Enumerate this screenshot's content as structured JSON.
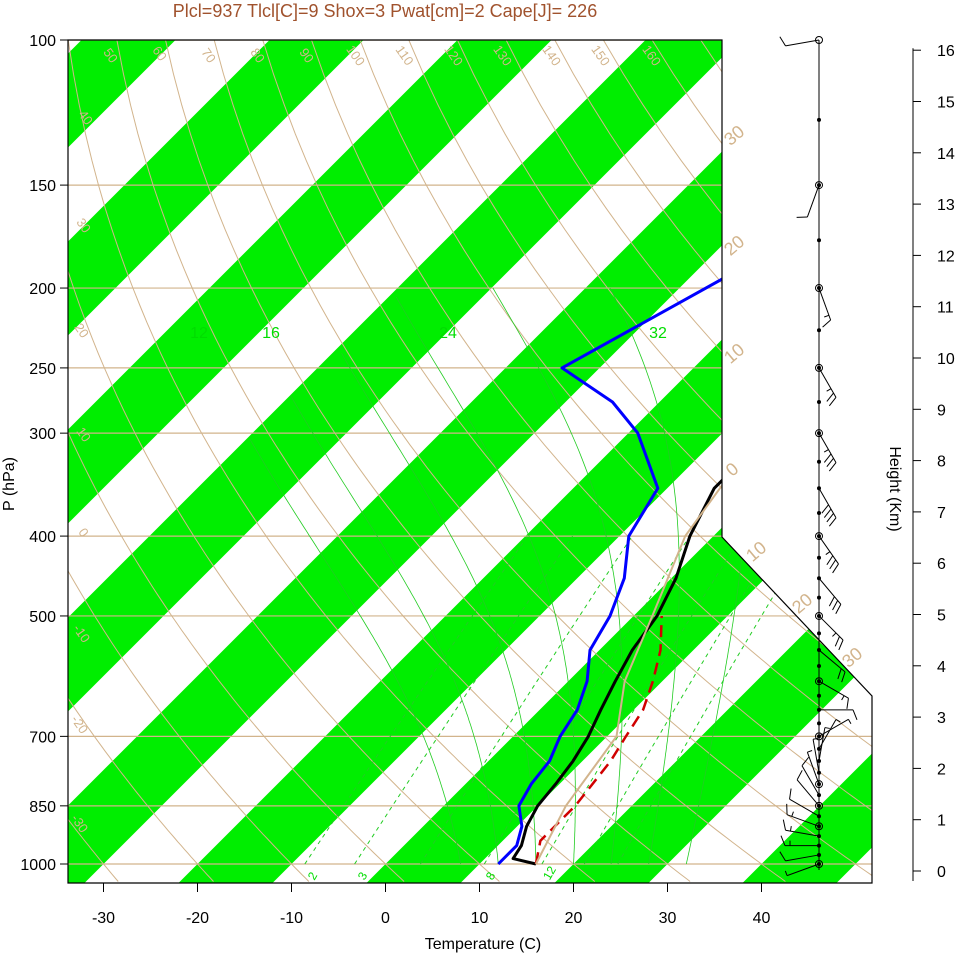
{
  "title": "Plcl=937 Tlcl[C]=9 Shox=3 Pwat[cm]=2 Cape[J]= 226",
  "chart_data": {
    "type": "line",
    "xlabel": "Temperature (C)",
    "ylabel": "P (hPa)",
    "y2label": "Height (Km)",
    "x_ticks": [
      -30,
      -20,
      -10,
      0,
      10,
      20,
      30,
      40
    ],
    "p_ticks": [
      100,
      150,
      200,
      250,
      300,
      400,
      500,
      700,
      850,
      1000
    ],
    "height_ticks": [
      0,
      1,
      2,
      3,
      4,
      5,
      6,
      7,
      8,
      9,
      10,
      11,
      12,
      13,
      14,
      15,
      16
    ],
    "dry_adiabat_labels": [
      "50",
      "60",
      "70",
      "80",
      "90",
      "100",
      "110",
      "120",
      "130",
      "140",
      "150",
      "160",
      "40",
      "30",
      "20",
      "10",
      "0",
      "-10",
      "-20",
      "-30"
    ],
    "moist_adiabat_labels": [
      "30",
      "20",
      "10",
      "0",
      "10",
      "20",
      "30"
    ],
    "mixing_ratio_labels_top": [
      "12",
      "16",
      "24",
      "32"
    ],
    "mixing_ratio_labels_bottom": [
      "2",
      "3",
      "8",
      "12"
    ],
    "series": [
      {
        "kind": "temperature",
        "color": "#000000",
        "points": [
          [
            1000,
            16
          ],
          [
            985,
            13
          ],
          [
            950,
            12.5
          ],
          [
            900,
            11
          ],
          [
            850,
            10
          ],
          [
            800,
            9.6
          ],
          [
            750,
            9
          ],
          [
            700,
            8
          ],
          [
            650,
            6.5
          ],
          [
            600,
            5
          ],
          [
            550,
            3.5
          ],
          [
            500,
            2.5
          ],
          [
            450,
            0.5
          ],
          [
            400,
            -2.5
          ],
          [
            350,
            -5
          ],
          [
            300,
            -5
          ],
          [
            275,
            -3
          ],
          [
            250,
            0
          ],
          [
            225,
            2
          ],
          [
            200,
            5
          ],
          [
            175,
            9
          ],
          [
            150,
            11
          ],
          [
            125,
            18
          ],
          [
            100,
            27
          ]
        ]
      },
      {
        "kind": "dewpoint",
        "color": "#0000ff",
        "points": [
          [
            1000,
            12
          ],
          [
            950,
            12
          ],
          [
            900,
            10.5
          ],
          [
            850,
            8
          ],
          [
            800,
            7
          ],
          [
            750,
            6.5
          ],
          [
            700,
            5
          ],
          [
            650,
            4
          ],
          [
            600,
            2
          ],
          [
            550,
            -1
          ],
          [
            500,
            -2.5
          ],
          [
            450,
            -5
          ],
          [
            400,
            -9
          ],
          [
            350,
            -11
          ],
          [
            300,
            -19
          ],
          [
            275,
            -25
          ],
          [
            250,
            -34
          ],
          [
            100,
            -6
          ]
        ]
      },
      {
        "kind": "parcel",
        "color": "#d00000",
        "points": [
          [
            1000,
            16
          ],
          [
            937,
            14
          ],
          [
            850,
            14
          ],
          [
            750,
            13
          ],
          [
            700,
            12
          ],
          [
            650,
            11
          ],
          [
            600,
            9
          ],
          [
            550,
            6.5
          ],
          [
            500,
            3
          ]
        ]
      },
      {
        "kind": "environment-virtual",
        "color": "#d2b48c",
        "points": [
          [
            1000,
            16
          ],
          [
            850,
            13
          ],
          [
            700,
            11
          ],
          [
            600,
            6
          ],
          [
            500,
            2
          ],
          [
            400,
            -3
          ],
          [
            300,
            -6
          ],
          [
            250,
            -9
          ],
          [
            225,
            -5
          ],
          [
            200,
            2
          ],
          [
            175,
            8
          ],
          [
            150,
            14
          ],
          [
            125,
            22
          ],
          [
            100,
            34
          ]
        ]
      }
    ],
    "wind_barbs": [
      {
        "p": 1000,
        "dir": 250,
        "spd": 5
      },
      {
        "p": 975,
        "dir": 260,
        "spd": 10
      },
      {
        "p": 950,
        "dir": 270,
        "spd": 15
      },
      {
        "p": 925,
        "dir": 280,
        "spd": 15
      },
      {
        "p": 900,
        "dir": 290,
        "spd": 15
      },
      {
        "p": 875,
        "dir": 300,
        "spd": 10
      },
      {
        "p": 850,
        "dir": 320,
        "spd": 10
      },
      {
        "p": 825,
        "dir": 330,
        "spd": 10
      },
      {
        "p": 800,
        "dir": 340,
        "spd": 5
      },
      {
        "p": 775,
        "dir": 350,
        "spd": 5
      },
      {
        "p": 750,
        "dir": 10,
        "spd": 5
      },
      {
        "p": 725,
        "dir": 30,
        "spd": 5
      },
      {
        "p": 700,
        "dir": 60,
        "spd": 5
      },
      {
        "p": 650,
        "dir": 90,
        "spd": 10
      },
      {
        "p": 600,
        "dir": 120,
        "spd": 15
      },
      {
        "p": 550,
        "dir": 130,
        "spd": 20
      },
      {
        "p": 500,
        "dir": 135,
        "spd": 25
      },
      {
        "p": 450,
        "dir": 140,
        "spd": 30
      },
      {
        "p": 400,
        "dir": 145,
        "spd": 35
      },
      {
        "p": 350,
        "dir": 150,
        "spd": 40
      },
      {
        "p": 300,
        "dir": 150,
        "spd": 35
      },
      {
        "p": 250,
        "dir": 150,
        "spd": 25
      },
      {
        "p": 200,
        "dir": 160,
        "spd": 15
      },
      {
        "p": 150,
        "dir": 200,
        "spd": 10
      },
      {
        "p": 100,
        "dir": 260,
        "spd": 10
      }
    ]
  }
}
